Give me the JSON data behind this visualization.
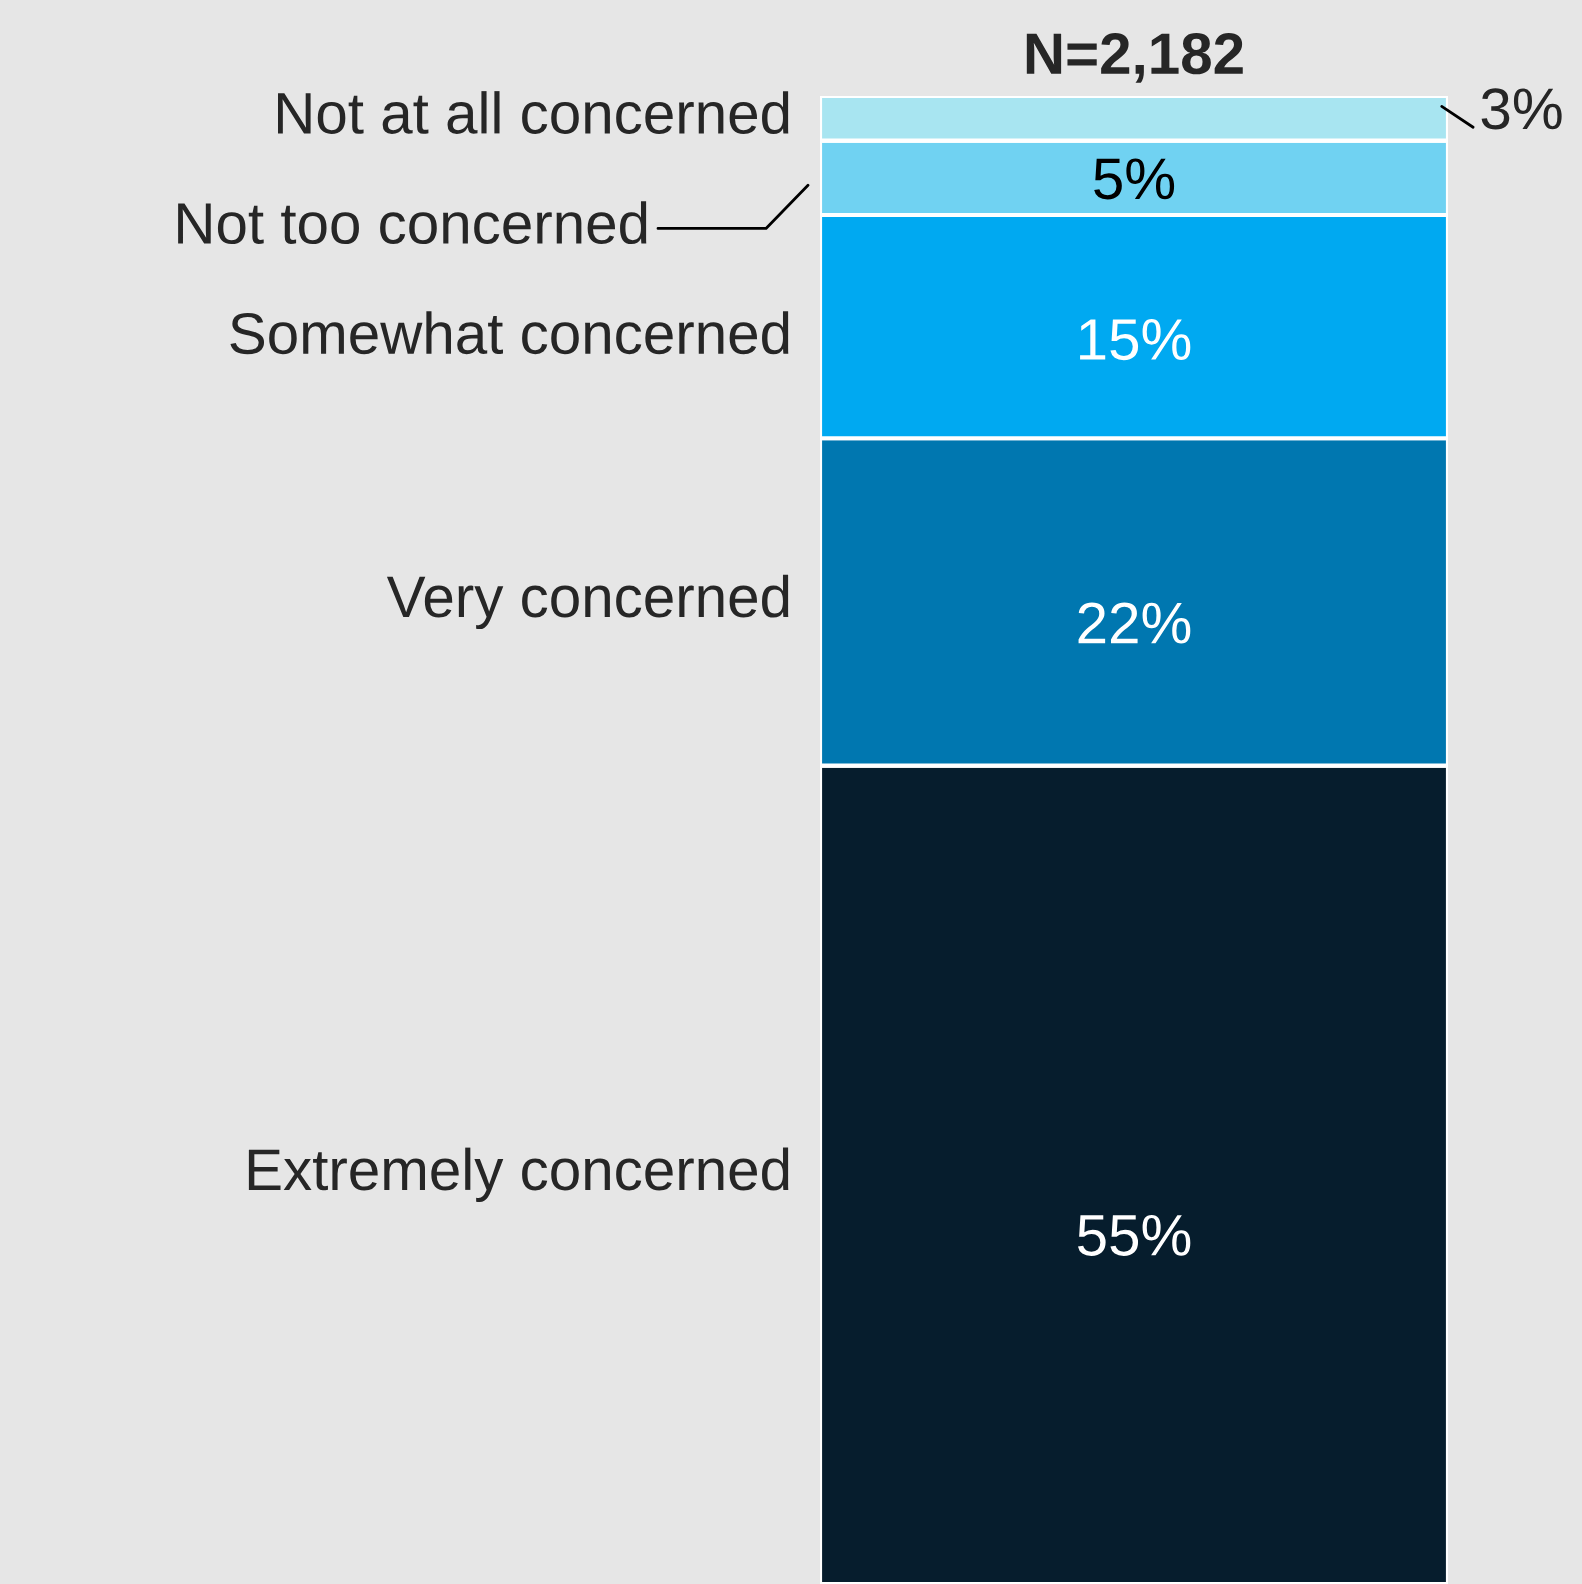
{
  "chart_data": {
    "type": "bar",
    "stacked": true,
    "title": "N=2,182",
    "categories": [
      null
    ],
    "series": [
      {
        "name": "Extremely concerned",
        "color": "#061d2d",
        "values": [
          55
        ],
        "value_labels": [
          "55%"
        ]
      },
      {
        "name": "Very concerned",
        "color": "#0077b0",
        "values": [
          22
        ],
        "value_labels": [
          "22%"
        ]
      },
      {
        "name": "Somewhat concerned",
        "color": "#00a9f1",
        "values": [
          15
        ],
        "value_labels": [
          "15%"
        ]
      },
      {
        "name": "Not too concerned",
        "color": "#70d2f2",
        "values": [
          5
        ],
        "value_labels": [
          "5%"
        ]
      },
      {
        "name": "Not at all concerned",
        "color": "#a8e5f1",
        "values": [
          3
        ],
        "value_labels": [
          "3%"
        ]
      }
    ]
  }
}
